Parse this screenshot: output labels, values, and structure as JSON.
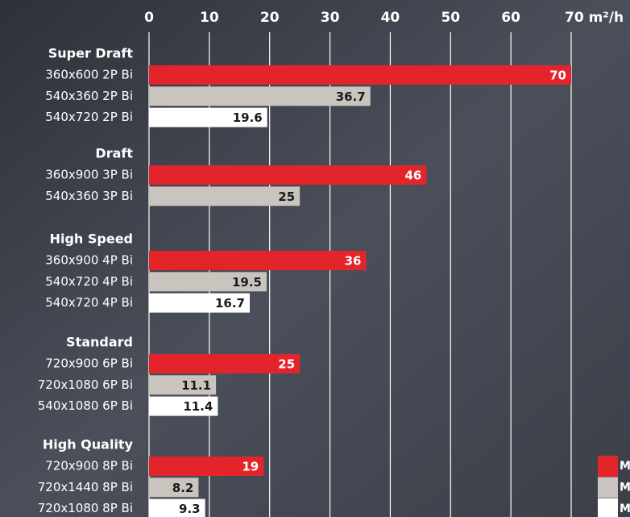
{
  "chart_data": {
    "type": "bar",
    "xlim": [
      0,
      70
    ],
    "xticks": [
      0,
      10,
      20,
      30,
      40,
      50,
      60,
      {
        "value": 70,
        "label": "70 m²/h"
      }
    ],
    "grid": true,
    "series": [
      {
        "name": "M",
        "color": "#e3252b"
      },
      {
        "name": "M",
        "color": "#c9c4bd"
      },
      {
        "name": "M",
        "color": "#ffffff"
      }
    ],
    "groups": [
      {
        "name": "Super Draft",
        "categories": [
          "360x600 2P Bi",
          "540x360 2P Bi",
          "540x720 2P Bi"
        ],
        "values": [
          70,
          36.7,
          19.6
        ]
      },
      {
        "name": "Draft",
        "categories": [
          "360x900 3P Bi",
          "540x360 3P Bi"
        ],
        "values": [
          46,
          25
        ]
      },
      {
        "name": "High Speed",
        "categories": [
          "360x900 4P Bi",
          "540x720 4P Bi",
          "540x720 4P Bi"
        ],
        "values": [
          36,
          19.5,
          16.7
        ]
      },
      {
        "name": "Standard",
        "categories": [
          "720x900 6P Bi",
          "720x1080 6P Bi",
          "540x1080 6P Bi"
        ],
        "values": [
          25,
          11.1,
          11.4
        ]
      },
      {
        "name": "High Quality",
        "categories": [
          "720x900 8P Bi",
          "720x1440 8P Bi",
          "720x1080 8P Bi"
        ],
        "values": [
          19,
          8.2,
          9.3
        ]
      }
    ]
  }
}
